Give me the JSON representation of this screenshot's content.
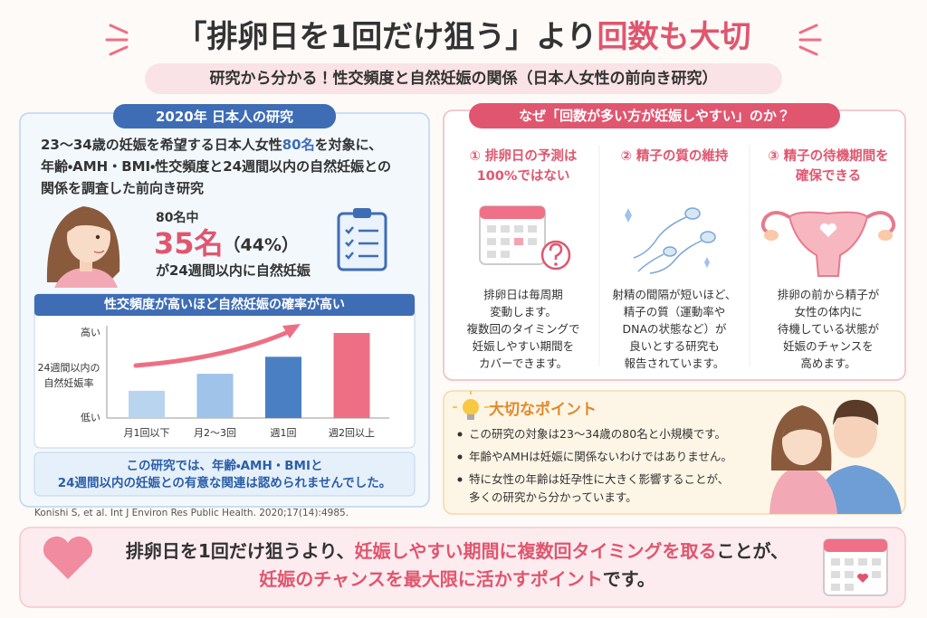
{
  "title": {
    "part1": "「排卵日を1回だけ狙う」より",
    "part2": "回数も大切"
  },
  "subtitle": "研究から分かる！性交頻度と自然妊娠の関係（日本人女性の前向き研究）",
  "study": {
    "header": "2020年 日本人の研究",
    "intro": [
      [
        "23〜34歳の妊娠を希望する日本人女性",
        "80名",
        "を対象に、"
      ],
      [
        "年齢・AMH・BMI・性交頻度と24週間以内の自然妊娠との"
      ],
      [
        "関係を調査した前向き研究"
      ]
    ],
    "stats": {
      "of": "80名中",
      "count": "35名",
      "pct": "（44%）",
      "result": "が24週間以内に自然妊娠"
    },
    "chart": {
      "type": "bar",
      "title": "性交頻度が高いほど自然妊娠の確率が高い",
      "y_label": [
        "24週間以内の",
        "自然妊娠率"
      ],
      "categories": [
        "月1回以下",
        "月2〜3回",
        "週1回",
        "週2回以上"
      ],
      "values": [
        32,
        52,
        72,
        100
      ],
      "colors": [
        "#b9d4ef",
        "#9fc3e9",
        "#4b7fc4",
        "#ee6f84"
      ],
      "ylim": [
        0,
        100
      ],
      "yticks": [
        {
          "value": 0,
          "label": "低い"
        },
        {
          "value": 100,
          "label": "高い"
        }
      ]
    },
    "note": [
      "この研究では、年齢・AMH・BMIと",
      "24週間以内の妊娠との有意な関連は認められませんでした。"
    ],
    "citation": "Konishi S, et al. Int J Environ Res Public Health. 2020;17(14):4985."
  },
  "reasons": {
    "header": "なぜ「回数が多い方が妊娠しやすい」のか？",
    "items": [
      {
        "title": [
          "① 排卵日の予測は",
          "100%ではない"
        ],
        "body": [
          "排卵日は毎周期",
          "変動します。",
          "複数回のタイミングで",
          "妊娠しやすい期間を",
          "カバーできます。"
        ]
      },
      {
        "title": [
          "② 精子の質の維持"
        ],
        "body": [
          "射精の間隔が短いほど、",
          "精子の質（運動率や",
          "DNAの状態など）が",
          "良いとする研究も",
          "報告されています。"
        ]
      },
      {
        "title": [
          "③ 精子の待機期間を",
          "確保できる"
        ],
        "body": [
          "排卵の前から精子が",
          "女性の体内に",
          "待機している状態が",
          "妊娠のチャンスを",
          "高めます。"
        ]
      }
    ]
  },
  "points": {
    "title": "大切なポイント",
    "items": [
      [
        "この研究の対象は23〜34歳の80名と小規模です。"
      ],
      [
        "年齢やAMHは妊娠に関係ないわけではありません。"
      ],
      [
        "特に女性の年齢は妊孕性に大きく影響することが、",
        "多くの研究から分かっています。"
      ]
    ]
  },
  "conclusion": {
    "line1": [
      "排卵日を1回だけ狙うより、",
      "妊娠しやすい期間に複数回タイミングを取る",
      "ことが、"
    ],
    "line2": [
      "妊娠のチャンスを最大限に活かすポイント",
      "です。"
    ]
  }
}
